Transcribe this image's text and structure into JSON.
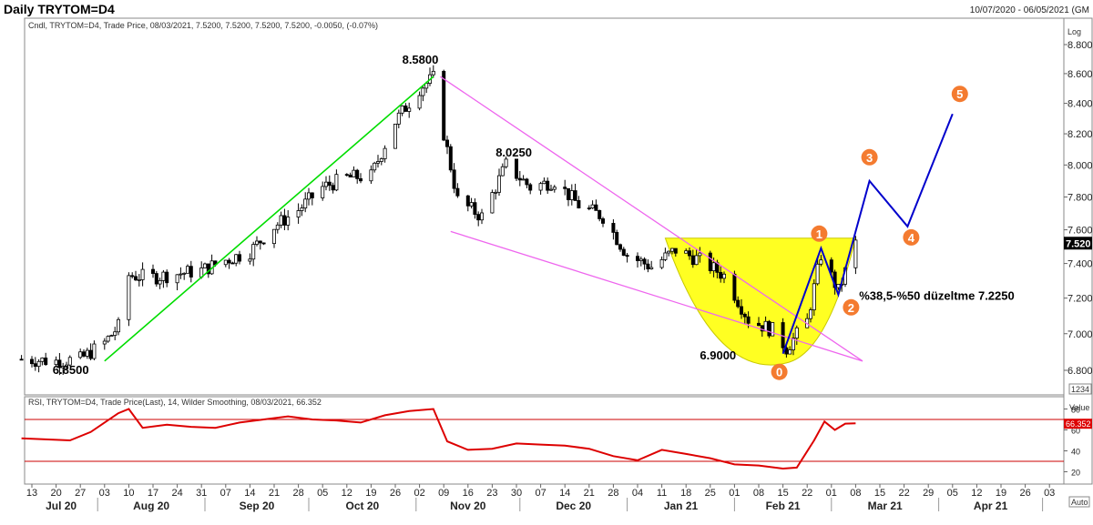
{
  "window": {
    "title": "Daily TRYTOM=D4",
    "date_range": "10/07/2020 - 06/05/2021 (GM"
  },
  "price_panel": {
    "legend": "Cndl, TRYTOM=D4, Trade Price, 08/03/2021, 7.5200, 7.5200, 7.5200, 7.5200, -0.0050, (-0.07%)",
    "scale_label": "Log",
    "last_price": "7.520",
    "corner_box": "1234",
    "annotations": {
      "high": "8.5800",
      "mid_high": "8.0250",
      "low_start": "6.8500",
      "low_feb": "6.9000",
      "retracement": "%38,5-%50 düzeltme 7.2250"
    },
    "wave_labels": [
      "0",
      "1",
      "2",
      "3",
      "4",
      "5"
    ]
  },
  "rsi_panel": {
    "legend": "RSI, TRYTOM=D4, Trade Price(Last), 14, Wilder Smoothing, 08/03/2021, 66.352",
    "value_label": "Value",
    "last_value": "66.352",
    "auto_label": "Auto",
    "y_ticks": [
      "80",
      "60",
      "40",
      "20"
    ],
    "levels": [
      70,
      30
    ]
  },
  "x_axis": {
    "days": [
      "13",
      "20",
      "27",
      "03",
      "10",
      "17",
      "24",
      "31",
      "07",
      "14",
      "21",
      "28",
      "05",
      "12",
      "19",
      "26",
      "02",
      "09",
      "16",
      "23",
      "30",
      "07",
      "14",
      "21",
      "28",
      "04",
      "11",
      "18",
      "25",
      "01",
      "08",
      "15",
      "22",
      "01",
      "08",
      "15",
      "22",
      "29",
      "05",
      "12",
      "19",
      "26",
      "03"
    ],
    "months": [
      "Jul 20",
      "Aug 20",
      "Sep 20",
      "Oct 20",
      "Nov 20",
      "Dec 20",
      "Jan 21",
      "Feb 21",
      "Mar 21",
      "Apr 21"
    ]
  },
  "colors": {
    "bull_candle": "#ffffff",
    "bear_candle": "#000000",
    "trend_up": "#00dd00",
    "channel": "#ee66ee",
    "cup": "#ffff22",
    "wave_path": "#0000cc",
    "wave_badge": "#f47b30",
    "rsi": "#dd0000",
    "rsi_level": "#cc0000"
  },
  "chart_data": [
    {
      "type": "candlestick",
      "title": "Daily TRYTOM=D4",
      "scale": "log",
      "ylim": [
        6.75,
        8.92
      ],
      "y_ticks": [
        "8.800",
        "8.600",
        "8.400",
        "8.200",
        "8.000",
        "7.800",
        "7.600",
        "7.400",
        "7.200",
        "7.000",
        "6.800"
      ],
      "x_range": [
        "2020-07-10",
        "2021-04-05"
      ],
      "close_series": [
        [
          "2020-07-10",
          6.86
        ],
        [
          "2020-07-20",
          6.85
        ],
        [
          "2020-07-27",
          6.86
        ],
        [
          "2020-08-03",
          6.95
        ],
        [
          "2020-08-07",
          7.04
        ],
        [
          "2020-08-10",
          7.33
        ],
        [
          "2020-08-17",
          7.32
        ],
        [
          "2020-08-24",
          7.34
        ],
        [
          "2020-08-31",
          7.36
        ],
        [
          "2020-09-07",
          7.42
        ],
        [
          "2020-09-14",
          7.47
        ],
        [
          "2020-09-21",
          7.62
        ],
        [
          "2020-09-28",
          7.72
        ],
        [
          "2020-10-05",
          7.86
        ],
        [
          "2020-10-12",
          7.92
        ],
        [
          "2020-10-19",
          7.93
        ],
        [
          "2020-10-26",
          8.28
        ],
        [
          "2020-11-02",
          8.5
        ],
        [
          "2020-11-06",
          8.57
        ],
        [
          "2020-11-09",
          8.2
        ],
        [
          "2020-11-13",
          7.78
        ],
        [
          "2020-11-20",
          7.68
        ],
        [
          "2020-11-27",
          8.0
        ],
        [
          "2020-12-04",
          7.86
        ],
        [
          "2020-12-11",
          7.9
        ],
        [
          "2020-12-18",
          7.75
        ],
        [
          "2020-12-25",
          7.68
        ],
        [
          "2021-01-01",
          7.45
        ],
        [
          "2021-01-08",
          7.38
        ],
        [
          "2021-01-15",
          7.48
        ],
        [
          "2021-01-22",
          7.42
        ],
        [
          "2021-01-29",
          7.33
        ],
        [
          "2021-02-05",
          7.08
        ],
        [
          "2021-02-12",
          7.02
        ],
        [
          "2021-02-16",
          6.92
        ],
        [
          "2021-02-22",
          7.07
        ],
        [
          "2021-02-26",
          7.45
        ],
        [
          "2021-03-03",
          7.24
        ],
        [
          "2021-03-08",
          7.52
        ]
      ],
      "annotations": [
        {
          "text": "8.5800",
          "date": "2020-11-08",
          "price": 8.58
        },
        {
          "text": "8.0250",
          "date": "2020-11-26",
          "price": 8.025
        },
        {
          "text": "6.8500",
          "date": "2020-07-24",
          "price": 6.85
        },
        {
          "text": "6.9000",
          "date": "2021-02-12",
          "price": 6.9
        }
      ],
      "trendlines": [
        {
          "name": "uptrend",
          "from": [
            "2020-08-03",
            6.85
          ],
          "to": [
            "2020-11-06",
            8.58
          ]
        },
        {
          "name": "channel-upper",
          "from": [
            "2020-11-08",
            8.58
          ],
          "to": [
            "2021-03-10",
            6.85
          ]
        },
        {
          "name": "channel-lower",
          "from": [
            "2020-11-11",
            7.59
          ],
          "to": [
            "2021-03-10",
            6.85
          ]
        }
      ],
      "projection": [
        {
          "label": "0",
          "date": "2021-02-15",
          "price": 6.89
        },
        {
          "label": "1",
          "date": "2021-02-26",
          "price": 7.49
        },
        {
          "label": "2",
          "date": "2021-03-03",
          "price": 7.22
        },
        {
          "label": "3",
          "date": "2021-03-12",
          "price": 7.9
        },
        {
          "label": "4",
          "date": "2021-03-23",
          "price": 7.62
        },
        {
          "label": "5",
          "date": "2021-04-05",
          "price": 8.33
        }
      ]
    },
    {
      "type": "line",
      "title": "RSI, TRYTOM=D4, Trade Price(Last), 14, Wilder Smoothing",
      "ylim": [
        10,
        90
      ],
      "series": [
        {
          "values": [
            [
              "2020-07-10",
              52
            ],
            [
              "2020-07-17",
              51
            ],
            [
              "2020-07-24",
              50
            ],
            [
              "2020-07-30",
              58
            ],
            [
              "2020-08-03",
              67
            ],
            [
              "2020-08-07",
              76
            ],
            [
              "2020-08-10",
              80
            ],
            [
              "2020-08-14",
              62
            ],
            [
              "2020-08-21",
              65
            ],
            [
              "2020-08-28",
              63
            ],
            [
              "2020-09-04",
              62
            ],
            [
              "2020-09-11",
              67
            ],
            [
              "2020-09-18",
              70
            ],
            [
              "2020-09-25",
              73
            ],
            [
              "2020-10-02",
              70
            ],
            [
              "2020-10-09",
              69
            ],
            [
              "2020-10-16",
              67
            ],
            [
              "2020-10-23",
              74
            ],
            [
              "2020-10-30",
              78
            ],
            [
              "2020-11-06",
              80
            ],
            [
              "2020-11-10",
              49
            ],
            [
              "2020-11-16",
              41
            ],
            [
              "2020-11-23",
              42
            ],
            [
              "2020-11-30",
              47
            ],
            [
              "2020-12-07",
              46
            ],
            [
              "2020-12-14",
              45
            ],
            [
              "2020-12-21",
              42
            ],
            [
              "2020-12-28",
              35
            ],
            [
              "2021-01-04",
              31
            ],
            [
              "2021-01-11",
              41
            ],
            [
              "2021-01-18",
              37
            ],
            [
              "2021-01-25",
              33
            ],
            [
              "2021-02-01",
              27
            ],
            [
              "2021-02-08",
              26
            ],
            [
              "2021-02-15",
              23
            ],
            [
              "2021-02-19",
              24
            ],
            [
              "2021-02-24",
              50
            ],
            [
              "2021-02-27",
              68
            ],
            [
              "2021-03-02",
              60
            ],
            [
              "2021-03-05",
              66
            ],
            [
              "2021-03-08",
              66.352
            ]
          ]
        }
      ]
    }
  ]
}
